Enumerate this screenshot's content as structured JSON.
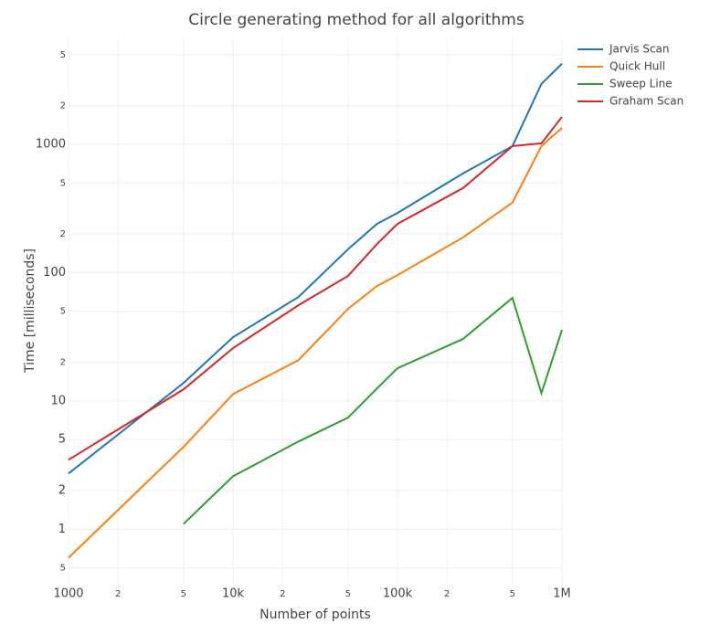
{
  "chart_data": {
    "type": "line",
    "title": "Circle generating method for all algorithms",
    "x_label": "Number of points",
    "y_label": "Time [milliseconds]",
    "x": [
      1000,
      5000,
      10000,
      25000,
      50000,
      75000,
      100000,
      250000,
      500000,
      750000,
      1000000
    ],
    "series": [
      {
        "name": "Jarvis Scan",
        "color": "#1f77b4",
        "values": [
          2.72,
          13.8,
          31.4,
          64.6,
          152,
          240,
          292,
          593,
          969,
          2960,
          4250
        ]
      },
      {
        "name": "Quick Hull",
        "color": "#ff7f0e",
        "values": [
          0.6,
          4.38,
          11.3,
          20.8,
          52.2,
          78.7,
          95.8,
          188,
          351,
          969,
          1345
        ]
      },
      {
        "name": "Sweep Line",
        "color": "#2ca02c",
        "values": [
          null,
          1.1,
          2.59,
          4.83,
          7.41,
          12.5,
          18.0,
          30.4,
          63.6,
          11.5,
          35.8
        ]
      },
      {
        "name": "Graham Scan",
        "color": "#d62728",
        "values": [
          3.48,
          12.3,
          25.8,
          55.7,
          94.2,
          167,
          240,
          456,
          969,
          1018,
          1640
        ]
      }
    ],
    "x_log": true,
    "y_log": true,
    "grid": true,
    "xlim": [
      1000,
      1000000
    ],
    "xticks": [
      1000,
      {
        "value": 2000,
        "label": "2"
      },
      {
        "value": 5000,
        "label": "5"
      },
      {
        "value": 10000,
        "label": "10k"
      },
      {
        "value": 20000,
        "label": "2"
      },
      {
        "value": 50000,
        "label": "5"
      },
      {
        "value": 100000,
        "label": "100k"
      },
      {
        "value": 200000,
        "label": "2"
      },
      {
        "value": 500000,
        "label": "5"
      },
      {
        "value": 1000000,
        "label": "1M"
      }
    ],
    "ylim": [
      0.37,
      6700
    ],
    "yticks": [
      {
        "value": 0.5,
        "label": "5"
      },
      1,
      2,
      5,
      10,
      {
        "value": 20,
        "label": "2"
      },
      {
        "value": 50,
        "label": "5"
      },
      100,
      {
        "value": 200,
        "label": "2"
      },
      {
        "value": 500,
        "label": "5"
      },
      1000,
      {
        "value": 2000,
        "label": "2"
      },
      {
        "value": 5000,
        "label": "5"
      }
    ],
    "legend": "top-right"
  }
}
